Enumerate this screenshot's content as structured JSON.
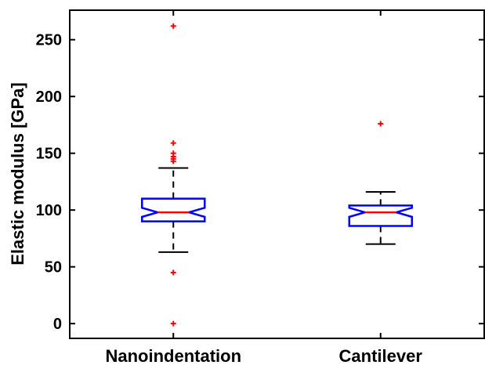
{
  "chart_data": {
    "type": "box",
    "title": "",
    "xlabel": "",
    "ylabel": "Elastic modulus [GPa]",
    "ylim": [
      -13,
      276
    ],
    "yticks": [
      0,
      50,
      100,
      150,
      200,
      250
    ],
    "grid": false,
    "categories": [
      "Nanoindentation",
      "Cantilever"
    ],
    "boxes": [
      {
        "category": "Nanoindentation",
        "whisker_low": 63,
        "q1": 90,
        "median": 98,
        "q3": 110,
        "whisker_high": 137,
        "notch_low": 94,
        "notch_high": 102,
        "outliers": [
          262,
          159,
          150,
          147,
          145,
          143,
          45,
          0
        ]
      },
      {
        "category": "Cantilever",
        "whisker_low": 70,
        "q1": 86,
        "median": 98,
        "q3": 104,
        "whisker_high": 116,
        "notch_low": 94,
        "notch_high": 102,
        "outliers": [
          176
        ]
      }
    ],
    "colors": {
      "box": "#0000ff",
      "median": "#ff0000",
      "outlier": "#ff0000",
      "whisker": "#000000"
    }
  }
}
